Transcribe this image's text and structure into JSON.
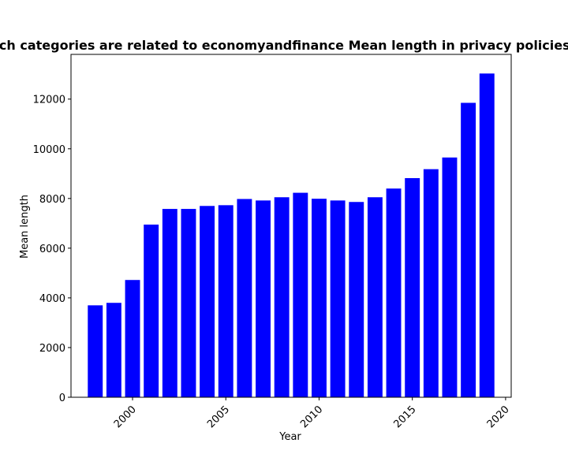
{
  "chart_data": {
    "type": "bar",
    "title": "Which categories are related to economyandfinance Mean length in privacy policies by year",
    "xlabel": "Year",
    "ylabel": "Mean length",
    "x": [
      1998,
      1999,
      2000,
      2001,
      2002,
      2003,
      2004,
      2005,
      2006,
      2007,
      2008,
      2009,
      2010,
      2011,
      2012,
      2013,
      2014,
      2015,
      2016,
      2017,
      2018,
      2019
    ],
    "values": [
      3700,
      3800,
      4720,
      6950,
      7580,
      7580,
      7700,
      7730,
      7980,
      7920,
      8050,
      8230,
      7990,
      7920,
      7860,
      8050,
      8400,
      8820,
      9180,
      9650,
      11850,
      13030
    ],
    "xlim": [
      1996.7,
      2020.3
    ],
    "ylim": [
      0,
      13800
    ],
    "xticks": [
      2000,
      2005,
      2010,
      2015,
      2020
    ],
    "yticks": [
      0,
      2000,
      4000,
      6000,
      8000,
      10000,
      12000
    ],
    "bar_color": "#0000ff",
    "grid": false,
    "legend": "none"
  }
}
